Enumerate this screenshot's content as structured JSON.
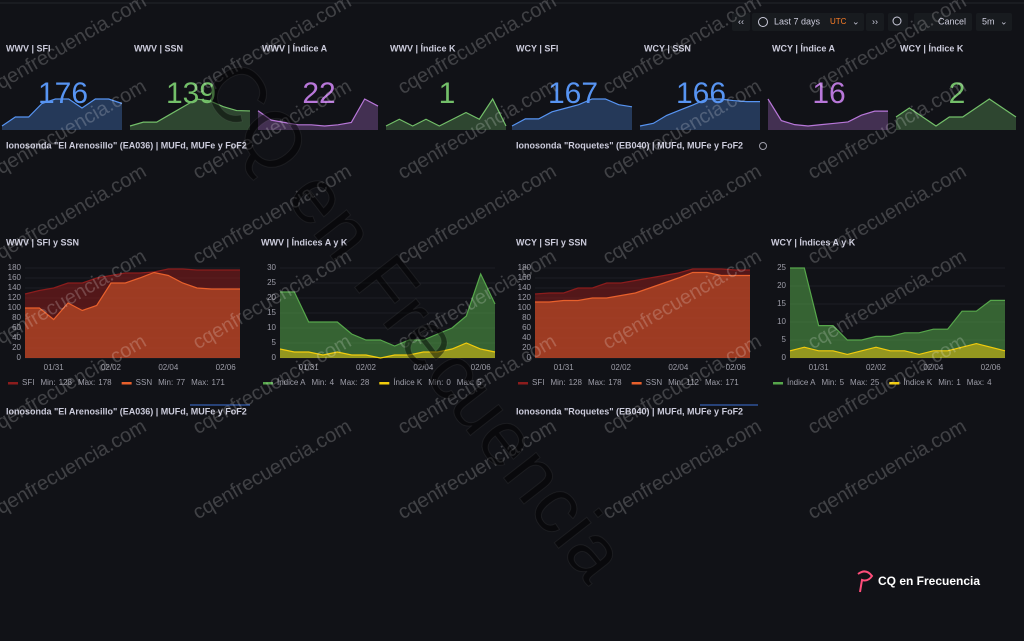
{
  "toolbar": {
    "range": "Last 7 days",
    "timezone": "UTC",
    "cancel": "Cancel",
    "refresh": "5m"
  },
  "stat_panels": [
    {
      "title": "WWV | SFI",
      "value": 176,
      "color": "#5794f2",
      "sparkline": [
        170,
        172,
        172,
        175,
        176,
        176,
        174,
        176,
        176,
        175
      ]
    },
    {
      "title": "WWV | SSN",
      "value": 139,
      "color": "#73bf69",
      "sparkline": [
        100,
        110,
        110,
        130,
        150,
        170,
        165,
        150,
        140,
        139
      ]
    },
    {
      "title": "WWV | Índice A",
      "value": 22,
      "color": "#b877d9",
      "sparkline": [
        18,
        10,
        8,
        6,
        6,
        5,
        6,
        8,
        28,
        22
      ]
    },
    {
      "title": "WWV | Índice K",
      "value": 1,
      "color": "#73bf69",
      "sparkline": [
        1,
        2,
        1,
        2,
        1,
        2,
        3,
        2,
        5,
        1
      ]
    },
    {
      "title": "WCY | SFI",
      "value": 167,
      "color": "#5794f2",
      "sparkline": [
        140,
        150,
        150,
        160,
        165,
        170,
        178,
        178,
        170,
        167
      ]
    },
    {
      "title": "WCY | SSN",
      "value": 166,
      "color": "#5794f2",
      "sparkline": [
        120,
        125,
        140,
        150,
        160,
        171,
        171,
        168,
        166,
        166
      ]
    },
    {
      "title": "WCY | Índice A",
      "value": 16,
      "color": "#b877d9",
      "sparkline": [
        25,
        9,
        6,
        5,
        6,
        7,
        8,
        13,
        16,
        16
      ]
    },
    {
      "title": "WCY | Índice K",
      "value": 2,
      "color": "#73bf69",
      "sparkline": [
        2,
        3,
        2,
        1,
        2,
        2,
        3,
        4,
        3,
        2
      ]
    }
  ],
  "ionosonde_panels": [
    "Ionosonda \"El Arenosillo\" (EA036) | MUFd, MUFe y FoF2",
    "Ionosonda \"Roquetes\" (EB040) | MUFd, MUFe y FoF2"
  ],
  "stat_labels": [
    "Min:",
    "Max:"
  ],
  "timeseries_panels": [
    {
      "title": "WWV | SFI y SSN",
      "ylim": [
        0,
        180
      ],
      "yticks": [
        0,
        20,
        40,
        60,
        80,
        100,
        120,
        140,
        160,
        180
      ],
      "categories": [
        null,
        null,
        "01/31",
        null,
        null,
        null,
        "02/02",
        null,
        null,
        null,
        "02/04",
        null,
        null,
        null,
        "02/06",
        null
      ],
      "series": [
        {
          "name": "SFI",
          "color": "#8b1c1c",
          "min": 128,
          "max": 178,
          "values": [
            128,
            135,
            140,
            150,
            150,
            160,
            165,
            170,
            170,
            172,
            178,
            178,
            176,
            176,
            176,
            176
          ]
        },
        {
          "name": "SSN",
          "color": "#e8602c",
          "min": 77,
          "max": 171,
          "values": [
            100,
            100,
            77,
            110,
            95,
            105,
            150,
            150,
            160,
            171,
            165,
            150,
            140,
            138,
            138,
            138
          ]
        }
      ]
    },
    {
      "title": "WWV | Índices A y K",
      "ylim": [
        0,
        30
      ],
      "yticks": [
        0,
        5,
        10,
        15,
        20,
        25,
        30
      ],
      "categories": [
        null,
        null,
        "01/31",
        null,
        null,
        null,
        "02/02",
        null,
        null,
        null,
        "02/04",
        null,
        null,
        null,
        "02/06",
        null
      ],
      "series": [
        {
          "name": "Índice A",
          "color": "#56a64b",
          "min": 4,
          "max": 28,
          "values": [
            22,
            22,
            12,
            12,
            12,
            8,
            6,
            6,
            4,
            6,
            6,
            8,
            10,
            14,
            28,
            18
          ]
        },
        {
          "name": "Índice K",
          "color": "#f2cc0c",
          "min": 0,
          "max": 5,
          "values": [
            3,
            2,
            2,
            1,
            2,
            1,
            1,
            0,
            1,
            1,
            2,
            2,
            3,
            5,
            3,
            2
          ]
        }
      ]
    },
    {
      "title": "WCY | SFI y SSN",
      "ylim": [
        0,
        180
      ],
      "yticks": [
        0,
        20,
        40,
        60,
        80,
        100,
        120,
        140,
        160,
        180
      ],
      "categories": [
        null,
        null,
        "01/31",
        null,
        null,
        null,
        "02/02",
        null,
        null,
        null,
        "02/04",
        null,
        null,
        null,
        "02/06",
        null
      ],
      "series": [
        {
          "name": "SFI",
          "color": "#8b1c1c",
          "min": 128,
          "max": 178,
          "values": [
            128,
            130,
            130,
            140,
            140,
            150,
            150,
            155,
            160,
            165,
            170,
            178,
            178,
            178,
            176,
            176
          ]
        },
        {
          "name": "SSN",
          "color": "#e8602c",
          "min": 112,
          "max": 171,
          "values": [
            112,
            112,
            115,
            115,
            120,
            120,
            125,
            130,
            140,
            150,
            160,
            171,
            171,
            165,
            165,
            165
          ]
        }
      ]
    },
    {
      "title": "WCY | Índices A y K",
      "ylim": [
        0,
        25
      ],
      "yticks": [
        0,
        5,
        10,
        15,
        20,
        25
      ],
      "categories": [
        null,
        null,
        "01/31",
        null,
        null,
        null,
        "02/02",
        null,
        null,
        null,
        "02/04",
        null,
        null,
        null,
        "02/06",
        null
      ],
      "series": [
        {
          "name": "Índice A",
          "color": "#56a64b",
          "min": 5,
          "max": 25,
          "values": [
            25,
            25,
            9,
            9,
            5,
            5,
            6,
            6,
            7,
            7,
            8,
            8,
            13,
            13,
            16,
            16
          ]
        },
        {
          "name": "Índice K",
          "color": "#f2cc0c",
          "min": 1,
          "max": 4,
          "values": [
            2,
            3,
            2,
            2,
            1,
            2,
            3,
            2,
            2,
            1,
            2,
            2,
            3,
            4,
            3,
            2
          ]
        }
      ]
    }
  ],
  "watermark": "cqenfrecuencia.com",
  "brand": "CQ en Frecuencia"
}
